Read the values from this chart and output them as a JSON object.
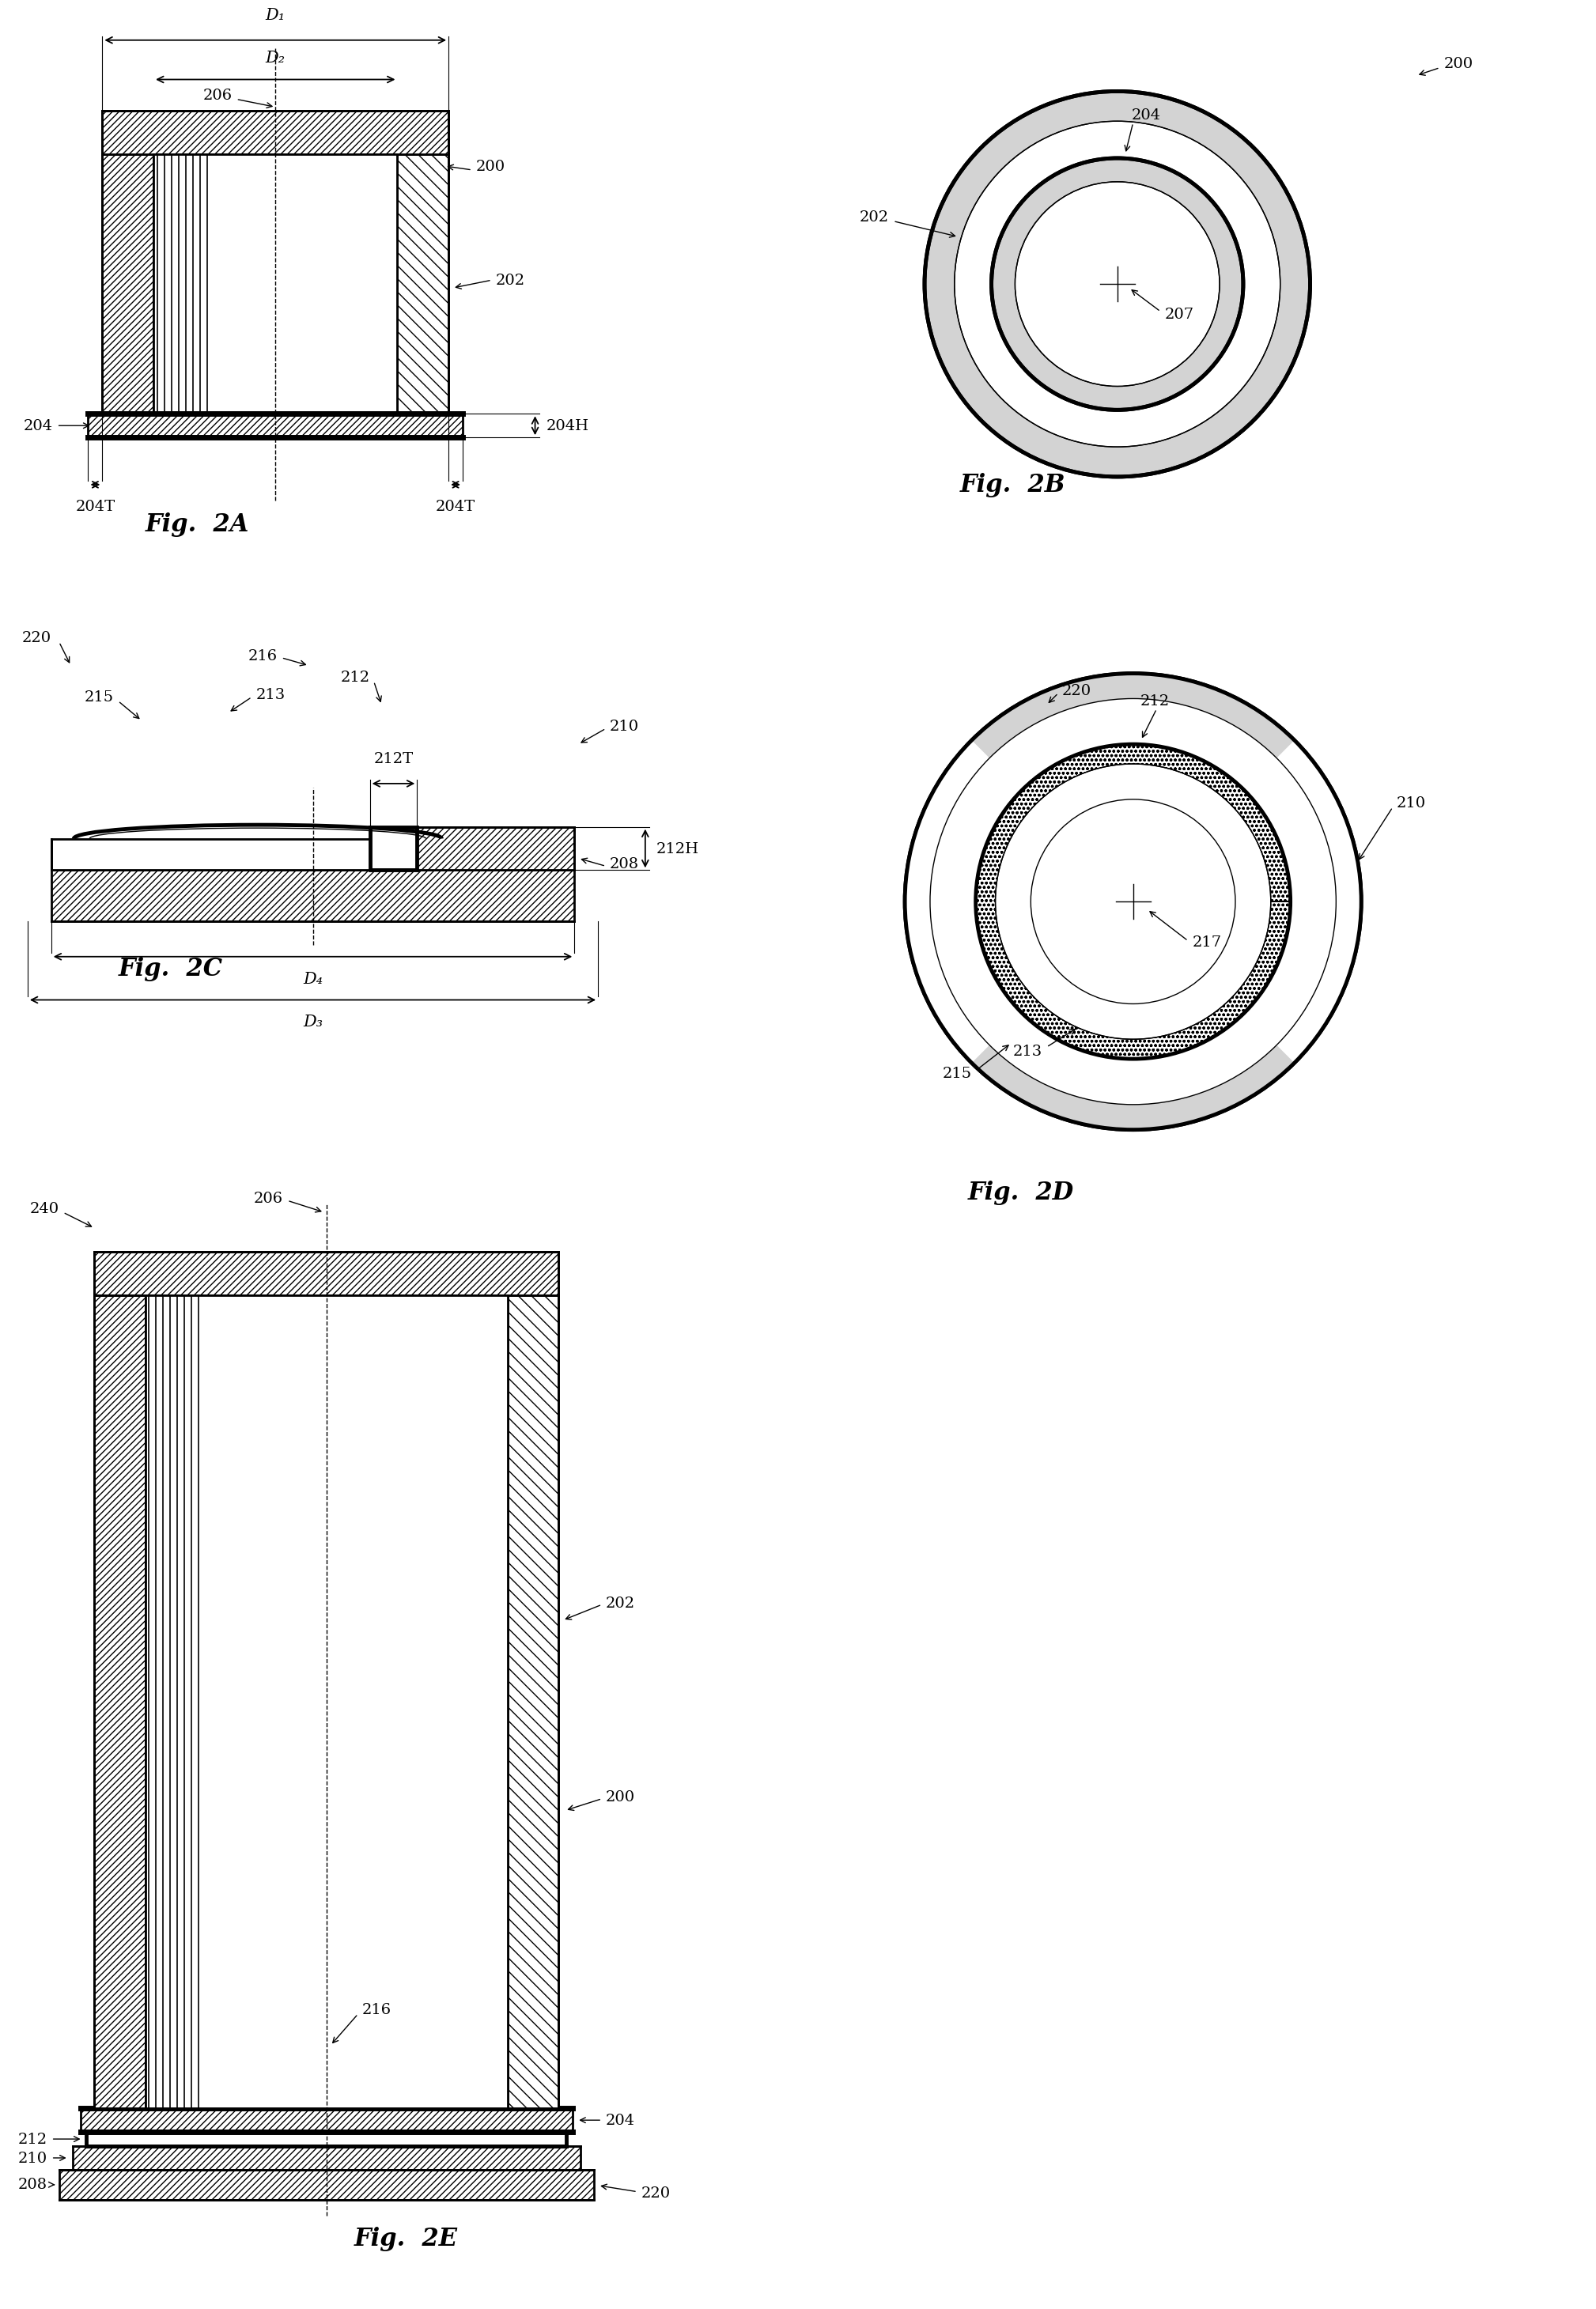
{
  "background_color": "#ffffff",
  "fig_labels": {
    "fig2A": "Fig.  2A",
    "fig2B": "Fig.  2B",
    "fig2C": "Fig.  2C",
    "fig2D": "Fig.  2D",
    "fig2E": "Fig.  2E"
  },
  "labels": {
    "200": "200",
    "202": "202",
    "204": "204",
    "204H": "204H",
    "204T": "204T",
    "206": "206",
    "207": "207",
    "208": "208",
    "210": "210",
    "212": "212",
    "212H": "212H",
    "212T": "212T",
    "213": "213",
    "215": "215",
    "216": "216",
    "217": "217",
    "220": "220",
    "240": "240",
    "D1": "D₁",
    "D2": "D₂",
    "D3": "D₃",
    "D4": "D₄"
  },
  "font_size_label": 14,
  "font_size_fig": 22,
  "font_size_dim": 15
}
